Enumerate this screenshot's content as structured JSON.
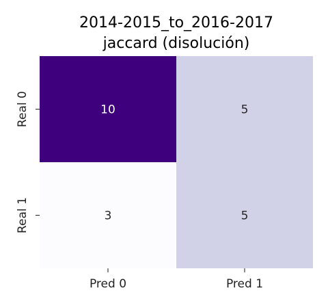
{
  "chart_data": {
    "type": "heatmap",
    "title": "2014-2015_to_2016-2017\njaccard (disolución)",
    "title_lines": [
      "2014-2015_to_2016-2017",
      "jaccard (disolución)"
    ],
    "row_labels": [
      "Real 0",
      "Real 1"
    ],
    "col_labels": [
      "Pred 0",
      "Pred 1"
    ],
    "values": [
      [
        10,
        5
      ],
      [
        3,
        5
      ]
    ],
    "colormap": "Purples",
    "vmin": 3,
    "vmax": 10,
    "colors": {
      "low": "#fcfbfd",
      "high": "#3f007d",
      "text_dark": "#262626",
      "text_light": "#ffffff"
    }
  }
}
